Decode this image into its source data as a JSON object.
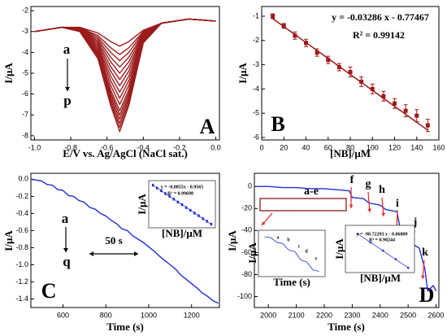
{
  "chart_data": [
    {
      "type": "line",
      "panel_label": "A",
      "xlabel": "E/V vs. Ag/AgCl (NaCl sat.)",
      "ylabel": "I/μA",
      "x": [
        -1.0,
        -0.85,
        -0.75,
        -0.65,
        -0.58,
        -0.53,
        -0.48,
        -0.4,
        -0.3,
        -0.15,
        0.0
      ],
      "series": [
        {
          "color": "#9b1c1c",
          "values": [
            -3.0,
            -2.8,
            -2.8,
            -3.07,
            -3.48,
            -3.7,
            -3.48,
            -2.94,
            -2.6,
            -2.4,
            -2.5
          ]
        },
        {
          "color": "#9b1c1c",
          "values": [
            -3.0,
            -2.8,
            -2.82,
            -3.19,
            -3.78,
            -4.1,
            -3.78,
            -3.0,
            -2.6,
            -2.4,
            -2.5
          ]
        },
        {
          "color": "#9b1c1c",
          "values": [
            -3.0,
            -2.8,
            -2.83,
            -3.28,
            -4.0,
            -4.4,
            -4.0,
            -3.04,
            -2.6,
            -2.4,
            -2.5
          ]
        },
        {
          "color": "#9b1c1c",
          "values": [
            -3.0,
            -2.8,
            -2.85,
            -3.37,
            -4.23,
            -4.7,
            -4.23,
            -3.09,
            -2.6,
            -2.4,
            -2.5
          ]
        },
        {
          "color": "#9b1c1c",
          "values": [
            -3.0,
            -2.8,
            -2.86,
            -3.46,
            -4.45,
            -5.0,
            -4.45,
            -3.13,
            -2.6,
            -2.4,
            -2.5
          ]
        },
        {
          "color": "#9b1c1c",
          "values": [
            -3.0,
            -2.8,
            -2.88,
            -3.55,
            -4.68,
            -5.3,
            -4.68,
            -3.18,
            -2.6,
            -2.4,
            -2.5
          ]
        },
        {
          "color": "#9b1c1c",
          "values": [
            -3.0,
            -2.8,
            -2.89,
            -3.64,
            -4.9,
            -5.6,
            -4.9,
            -3.22,
            -2.6,
            -2.4,
            -2.5
          ]
        },
        {
          "color": "#9b1c1c",
          "values": [
            -3.0,
            -2.8,
            -2.91,
            -3.73,
            -5.13,
            -5.9,
            -5.13,
            -3.27,
            -2.6,
            -2.4,
            -2.5
          ]
        },
        {
          "color": "#9b1c1c",
          "values": [
            -3.0,
            -2.8,
            -2.92,
            -3.82,
            -5.35,
            -6.2,
            -5.35,
            -3.31,
            -2.6,
            -2.4,
            -2.5
          ]
        },
        {
          "color": "#9b1c1c",
          "values": [
            -3.0,
            -2.8,
            -2.94,
            -3.91,
            -5.58,
            -6.5,
            -5.58,
            -3.36,
            -2.6,
            -2.4,
            -2.5
          ]
        },
        {
          "color": "#9b1c1c",
          "values": [
            -3.0,
            -2.8,
            -2.95,
            -4.0,
            -5.8,
            -6.8,
            -5.8,
            -3.4,
            -2.6,
            -2.4,
            -2.5
          ]
        },
        {
          "color": "#9b1c1c",
          "values": [
            -3.0,
            -2.8,
            -2.96,
            -4.06,
            -5.95,
            -7.0,
            -5.95,
            -3.43,
            -2.6,
            -2.4,
            -2.5
          ]
        },
        {
          "color": "#9b1c1c",
          "values": [
            -3.0,
            -2.8,
            -2.97,
            -4.12,
            -6.1,
            -7.2,
            -6.1,
            -3.46,
            -2.6,
            -2.4,
            -2.5
          ]
        },
        {
          "color": "#9b1c1c",
          "values": [
            -3.0,
            -2.8,
            -2.98,
            -4.18,
            -6.25,
            -7.4,
            -6.25,
            -3.49,
            -2.6,
            -2.4,
            -2.5
          ]
        },
        {
          "color": "#9b1c1c",
          "values": [
            -3.0,
            -2.8,
            -2.99,
            -4.24,
            -6.4,
            -7.6,
            -6.4,
            -3.52,
            -2.6,
            -2.4,
            -2.5
          ]
        },
        {
          "color": "#9b1c1c",
          "values": [
            -3.0,
            -2.8,
            -3.0,
            -4.3,
            -6.55,
            -7.8,
            -6.55,
            -3.55,
            -2.6,
            -2.4,
            -2.5
          ]
        }
      ],
      "annotations": [
        "a",
        "p"
      ],
      "xlim": [
        -1.02,
        0.02
      ],
      "ylim": [
        -8.2,
        -1.8
      ],
      "xticks": [
        {
          "value": -1,
          "label": "-1.0"
        },
        -0.8,
        -0.6,
        -0.4,
        -0.2,
        {
          "value": 0,
          "label": "0.0"
        }
      ],
      "yticks": [
        -2,
        -3,
        -4,
        -5,
        -6,
        -7,
        -8
      ]
    },
    {
      "type": "scatter",
      "panel_label": "B",
      "xlabel": "[NB]/μM",
      "ylabel": "I/μA",
      "x": [
        10,
        20,
        30,
        40,
        50,
        60,
        70,
        80,
        90,
        100,
        110,
        120,
        130,
        140,
        150
      ],
      "values": [
        -1.0,
        -1.4,
        -1.8,
        -2.1,
        -2.5,
        -2.8,
        -3.1,
        -3.3,
        -3.7,
        -4.0,
        -4.3,
        -4.6,
        -4.9,
        -5.1,
        -5.5
      ],
      "errors": [
        0.1,
        0.1,
        0.15,
        0.15,
        0.15,
        0.15,
        0.15,
        0.2,
        0.2,
        0.2,
        0.2,
        0.2,
        0.25,
        0.25,
        0.25
      ],
      "color": "#a01818",
      "fit": {
        "x": [
          10,
          150
        ],
        "values": [
          -1.1,
          -5.7
        ]
      },
      "annotations": [
        "y = -0.03286 x - 0.77467",
        "R² = 0.99142"
      ],
      "xlim": [
        0,
        160
      ],
      "ylim": [
        -6.1,
        -0.6
      ],
      "xticks": [
        0,
        20,
        40,
        60,
        80,
        100,
        120,
        140,
        160
      ],
      "yticks": [
        -1,
        -2,
        -3,
        -4,
        -5,
        -6
      ]
    },
    {
      "type": "line",
      "panel_label": "C",
      "xlabel": "Time (s)",
      "ylabel": "I/μA",
      "x": [
        450,
        475,
        500,
        525,
        550,
        575,
        600,
        625,
        650,
        675,
        700,
        725,
        750,
        775,
        800,
        825,
        850,
        875,
        900,
        925,
        950,
        975,
        1000,
        1025,
        1050,
        1075,
        1100,
        1125,
        1150,
        1175,
        1200,
        1225,
        1250,
        1275,
        1300,
        1325
      ],
      "series": [
        {
          "color": "#1f2fd6",
          "values": [
            0.0,
            -0.01,
            -0.02,
            -0.06,
            -0.07,
            -0.12,
            -0.13,
            -0.19,
            -0.2,
            -0.25,
            -0.27,
            -0.33,
            -0.35,
            -0.4,
            -0.43,
            -0.48,
            -0.52,
            -0.58,
            -0.6,
            -0.66,
            -0.7,
            -0.74,
            -0.79,
            -0.84,
            -0.9,
            -0.95,
            -1.0,
            -1.05,
            -1.12,
            -1.17,
            -1.22,
            -1.27,
            -1.33,
            -1.37,
            -1.42,
            -1.45
          ]
        }
      ],
      "annotations": [
        "a",
        "q",
        "50 s"
      ],
      "xlim": [
        450,
        1330
      ],
      "ylim": [
        -1.5,
        0.07
      ],
      "xticks": [
        600,
        800,
        1000,
        1200
      ],
      "yticks": [
        {
          "value": 0,
          "label": "0.0"
        },
        -0.2,
        -0.4,
        -0.6,
        -0.8,
        {
          "value": -1,
          "label": "-1.0"
        },
        -1.2,
        -1.4
      ]
    },
    {
      "type": "scatter",
      "xlabel": "[NB]/μM",
      "ylabel": "I/μA",
      "x": [
        1,
        2,
        3,
        4,
        5,
        6,
        7,
        8,
        9,
        10,
        11,
        12,
        13,
        14,
        15
      ],
      "values": [
        -1.04,
        -1.13,
        -1.21,
        -1.3,
        -1.38,
        -1.47,
        -1.56,
        -1.64,
        -1.73,
        -1.81,
        -1.9,
        -1.98,
        -2.07,
        -2.15,
        -2.24
      ],
      "errors": [
        0.03,
        0.03,
        0.03,
        0.03,
        0.03,
        0.03,
        0.03,
        0.03,
        0.03,
        0.03,
        0.03,
        0.03,
        0.03,
        0.03,
        0.03
      ],
      "color": "#1f2fd6",
      "fit": {
        "x": [
          1,
          15
        ],
        "values": [
          -1.04,
          -2.24
        ]
      },
      "annotations": [
        "y = -0.0855x - 0.9565",
        "R² = 0.99698"
      ],
      "xlim": [
        0,
        16
      ],
      "ylim": [
        -2.35,
        -0.9
      ]
    },
    {
      "type": "line",
      "panel_label": "D",
      "xlabel": "Time (s)",
      "ylabel": "I/μA",
      "x": [
        1960,
        2000,
        2050,
        2100,
        2150,
        2200,
        2250,
        2290,
        2300,
        2340,
        2360,
        2400,
        2420,
        2460,
        2470,
        2490,
        2500,
        2540,
        2560,
        2570,
        2590,
        2600
      ],
      "series": [
        {
          "color": "#1f2fd6",
          "values": [
            0,
            0,
            -1,
            -1,
            -2,
            -2,
            -3,
            -4,
            -10,
            -11,
            -15,
            -17,
            -21,
            -23,
            -36,
            -38,
            -50,
            -56,
            -75,
            -95,
            -90,
            -95
          ]
        }
      ],
      "annotations": [
        "a-e",
        "f",
        "g",
        "h",
        "i",
        "j",
        "k"
      ],
      "xlim": [
        1950,
        2610
      ],
      "ylim": [
        -110,
        12
      ],
      "xticks": [
        2000,
        2100,
        2200,
        2300,
        2400,
        2500,
        2600
      ],
      "yticks": [
        0,
        -20,
        -40,
        -60,
        -80,
        -100
      ]
    },
    {
      "type": "line",
      "xlabel": "Time (s)",
      "ylabel": "I/μA",
      "x": [
        1,
        2,
        3,
        4,
        5,
        6,
        7,
        8,
        9,
        10
      ],
      "series": [
        {
          "color": "#1f2fd6",
          "values": [
            -10,
            -11,
            -18,
            -20,
            -30,
            -32,
            -45,
            -48,
            -60,
            -62
          ]
        }
      ],
      "annotations": [
        "a",
        "b",
        "c",
        "d",
        "e"
      ],
      "xlim": [
        0,
        11
      ],
      "ylim": [
        -70,
        0
      ]
    },
    {
      "type": "scatter",
      "xlabel": "[NB]/μM",
      "ylabel": "I/μA",
      "x": [
        0.02,
        0.04,
        0.06,
        0.08,
        0.1
      ],
      "values": [
        -2.0,
        -4.0,
        -5.9,
        -7.9,
        -9.9
      ],
      "color": "#1f2fd6",
      "fit": {
        "x": [
          0.02,
          0.1
        ],
        "values": [
          -2.0,
          -9.9
        ]
      },
      "annotations": [
        "y = -98.72293 x - 0.06809",
        "R² = 0.98244"
      ],
      "xlim": [
        0,
        0.11
      ],
      "ylim": [
        -11,
        0
      ]
    }
  ]
}
